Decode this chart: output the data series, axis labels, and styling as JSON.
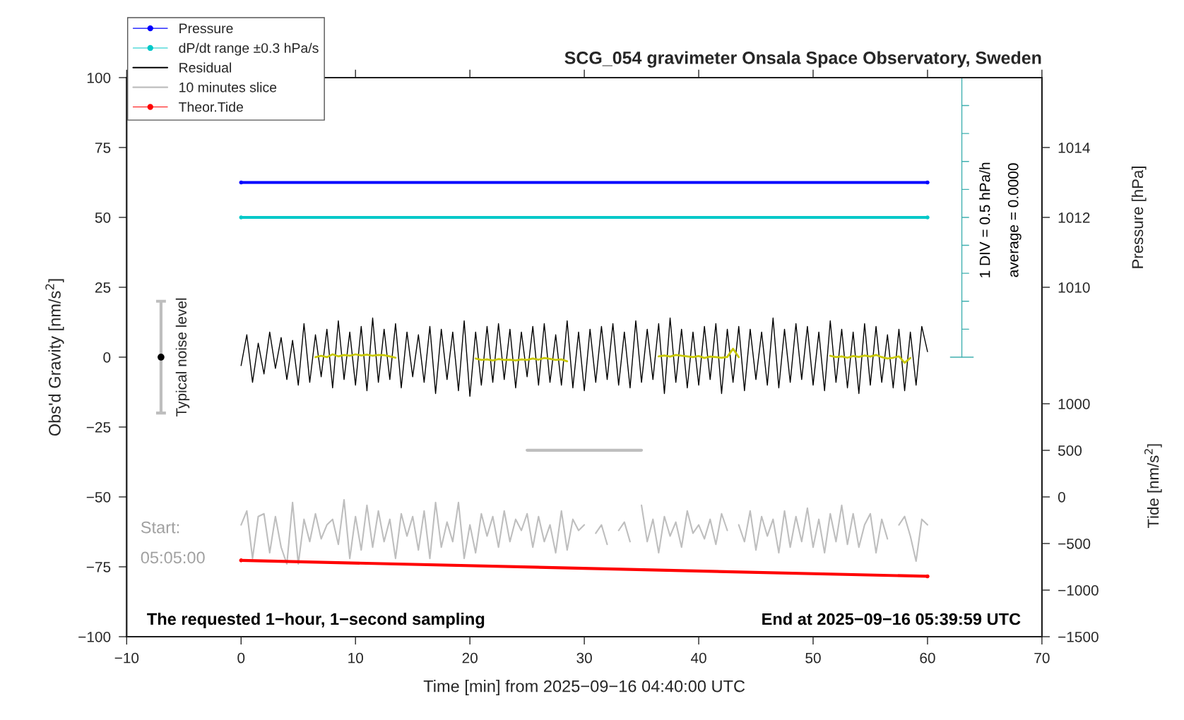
{
  "chart_data": {
    "type": "line",
    "title": "SCG_054 gravimeter Onsala Space Observatory, Sweden",
    "xlabel": "Time [min] from 2025−09−16 04:40:00 UTC",
    "ylabel": "Obs'd Gravity [nm/s$^{2}$]",
    "y2label": "Pressure [hPa]",
    "y3label": "Tide [nm/s$^{2}$]",
    "xlim": [
      -10,
      70
    ],
    "xticks": [
      {
        "value": -10,
        "label": "−10"
      },
      0,
      10,
      20,
      30,
      40,
      50,
      60,
      70
    ],
    "ylim": [
      -100,
      100
    ],
    "yticks": [
      {
        "value": -100,
        "label": "−100"
      },
      {
        "value": -75,
        "label": "−75"
      },
      {
        "value": -50,
        "label": "−50"
      },
      {
        "value": -25,
        "label": "−25"
      },
      0,
      25,
      50,
      75,
      100
    ],
    "y2lim": [
      1000,
      1016
    ],
    "y2ticks": [
      1010,
      1012,
      1014
    ],
    "y3lim": [
      -1500,
      4500
    ],
    "y3ticks": [
      {
        "value": -1500,
        "label": "−1500"
      },
      {
        "value": -1000,
        "label": "−1000"
      },
      {
        "value": -500,
        "label": "−500"
      },
      0,
      500,
      1000
    ],
    "grid": false,
    "legend": "top left",
    "annotations": [
      "Start:",
      "05:05:00",
      "The requested 1−hour, 1−second sampling",
      "End at 2025−09−16 05:39:59 UTC",
      "1 DIV = 0.5 hPa/h",
      "average = 0.0000"
    ],
    "series": [
      {
        "name": "Pressure",
        "axis": "y2",
        "color": "#0000ff",
        "marker": "circle",
        "x": [
          0,
          60
        ],
        "values": [
          1013,
          1013
        ]
      },
      {
        "name": "dP/dt range ±0.3 hPa/s",
        "color": "#00c8c8",
        "marker": "circle",
        "x": [
          0,
          60
        ],
        "values": [
          50,
          50
        ]
      },
      {
        "name": "Residual",
        "color": "#000000",
        "x": [
          0,
          0.5,
          1,
          1.5,
          2,
          2.5,
          3,
          3.5,
          4,
          4.5,
          5,
          5.5,
          6,
          6.5,
          7,
          7.5,
          8,
          8.5,
          9,
          9.5,
          10,
          10.5,
          11,
          11.5,
          12,
          12.5,
          13,
          13.5,
          14,
          14.5,
          15,
          15.5,
          16,
          16.5,
          17,
          17.5,
          18,
          18.5,
          19,
          19.5,
          20,
          20.5,
          21,
          21.5,
          22,
          22.5,
          23,
          23.5,
          24,
          24.5,
          25,
          25.5,
          26,
          26.5,
          27,
          27.5,
          28,
          28.5,
          29,
          29.5,
          30,
          30.5,
          31,
          31.5,
          32,
          32.5,
          33,
          33.5,
          34,
          34.5,
          35,
          35.5,
          36,
          36.5,
          37,
          37.5,
          38,
          38.5,
          39,
          39.5,
          40,
          40.5,
          41,
          41.5,
          42,
          42.5,
          43,
          43.5,
          44,
          44.5,
          45,
          45.5,
          46,
          46.5,
          47,
          47.5,
          48,
          48.5,
          49,
          49.5,
          50,
          50.5,
          51,
          51.5,
          52,
          52.5,
          53,
          53.5,
          54,
          54.5,
          55,
          55.5,
          56,
          56.5,
          57,
          57.5,
          58,
          58.5,
          59,
          59.5,
          60
        ],
        "values": [
          -3,
          8,
          -9,
          5,
          -6,
          9,
          -4,
          7,
          -8,
          6,
          -10,
          12,
          -9,
          8,
          -7,
          10,
          -11,
          13,
          -8,
          9,
          -10,
          11,
          -12,
          14,
          -9,
          10,
          -8,
          12,
          -11,
          9,
          -7,
          8,
          -9,
          11,
          -13,
          10,
          -8,
          9,
          -12,
          13,
          -14,
          9,
          -10,
          11,
          -9,
          12,
          -8,
          10,
          -11,
          9,
          -7,
          11,
          -10,
          12,
          -9,
          8,
          -10,
          13,
          -11,
          9,
          -12,
          10,
          -9,
          11,
          -8,
          12,
          -10,
          9,
          -11,
          13,
          -9,
          10,
          -8,
          12,
          -13,
          14,
          -9,
          10,
          -11,
          9,
          -10,
          11,
          -8,
          12,
          -13,
          10,
          -9,
          11,
          -12,
          10,
          -8,
          9,
          -10,
          14,
          -11,
          10,
          -9,
          12,
          -8,
          11,
          -10,
          9,
          -12,
          13,
          -9,
          10,
          -11,
          9,
          -13,
          12,
          -10,
          11,
          -9,
          8,
          -11,
          10,
          -12,
          9,
          -10,
          11,
          2
        ]
      },
      {
        "color": "#c8c800",
        "x": [
          6.5,
          7,
          7.5,
          8,
          8.5,
          9,
          9.5,
          10,
          10.5,
          11,
          11.5,
          12,
          12.5,
          13,
          13.5,
          14,
          20.5,
          21,
          21.5,
          22,
          22.5,
          23,
          23.5,
          24,
          24.5,
          25,
          25.5,
          26,
          26.5,
          27,
          27.5,
          28,
          28.5,
          29,
          36.5,
          37,
          37.5,
          38,
          38.5,
          39,
          39.5,
          40,
          40.5,
          41,
          41.5,
          42,
          42.5,
          43,
          43.5,
          44,
          51.5,
          52,
          52.5,
          53,
          53.5,
          54,
          54.5,
          55,
          55.5,
          56,
          56.5,
          57,
          57.5,
          58,
          58.5
        ],
        "values": [
          0,
          0.5,
          0,
          1,
          0.3,
          0.8,
          0.5,
          1,
          0.6,
          0.9,
          0.5,
          0.8,
          0.7,
          0.3,
          -0.2,
          null,
          -0.5,
          -1,
          -0.8,
          -1.2,
          -0.7,
          -1,
          -0.9,
          -1.2,
          -0.8,
          -1,
          -0.5,
          -0.9,
          -0.3,
          -0.6,
          -1,
          -0.8,
          -1.5,
          null,
          0.3,
          0.6,
          0.2,
          0.8,
          0.5,
          0.3,
          0,
          0.4,
          -0.3,
          0.2,
          0,
          -0.2,
          0.1,
          3,
          0,
          null,
          0.5,
          0,
          0.3,
          -0.2,
          0.4,
          0.1,
          0.6,
          0.2,
          0.8,
          0,
          -0.5,
          -0.2,
          0.3,
          -2,
          -0.3
        ]
      },
      {
        "name": "10 minutes slice",
        "color": "#bebebe",
        "x": [
          0,
          0.5,
          1,
          1.5,
          2,
          2.5,
          3,
          3.5,
          4,
          4.5,
          5,
          5.5,
          6,
          6.5,
          7,
          7.5,
          8,
          8.5,
          9,
          9.5,
          10,
          10.5,
          11,
          11.5,
          12,
          12.5,
          13,
          13.5,
          14,
          14.5,
          15,
          15.5,
          16,
          16.5,
          17,
          17.5,
          18,
          18.5,
          19,
          19.5,
          20,
          20.5,
          21,
          21.5,
          22,
          22.5,
          23,
          23.5,
          24,
          24.5,
          25,
          25.5,
          26,
          26.5,
          27,
          27.5,
          28,
          28.5,
          29,
          29.5,
          30,
          30.5,
          31,
          31.5,
          32,
          32.5,
          33,
          33.5,
          34,
          34.5,
          35,
          35.5,
          36,
          36.5,
          37,
          37.5,
          38,
          38.5,
          39,
          39.5,
          40,
          40.5,
          41,
          41.5,
          42,
          42.5,
          43,
          43.5,
          44,
          44.5,
          45,
          45.5,
          46,
          46.5,
          47,
          47.5,
          48,
          48.5,
          49,
          49.5,
          50,
          50.5,
          51,
          51.5,
          52,
          52.5,
          53,
          53.5,
          54,
          54.5,
          55,
          55.5,
          56,
          56.5,
          57,
          57.5,
          58,
          58.5,
          59,
          59.5,
          60
        ],
        "values": [
          -60,
          -55,
          -72,
          -57,
          -56,
          -70,
          -57,
          -68,
          -74,
          -52,
          -74,
          -58,
          -66,
          -56,
          -65,
          -60,
          -58,
          -67,
          -51,
          -72,
          -57,
          -69,
          -53,
          -68,
          -55,
          -66,
          -58,
          -72,
          -56,
          -64,
          -57,
          -69,
          -55,
          -72,
          -52,
          -68,
          -59,
          -66,
          -52,
          -72,
          -60,
          -70,
          -56,
          -64,
          -57,
          -68,
          -55,
          -66,
          -58,
          -62,
          -56,
          -68,
          -57,
          -66,
          -60,
          -70,
          -55,
          -69,
          -58,
          -62,
          -60,
          null,
          -63,
          -60,
          -67,
          null,
          -62,
          -59,
          -66,
          null,
          -53,
          -66,
          -58,
          -70,
          -57,
          -64,
          -59,
          -68,
          -55,
          -63,
          -60,
          -65,
          -58,
          -67,
          -56,
          -62,
          null,
          -60,
          -66,
          -55,
          -69,
          -57,
          -64,
          -58,
          -70,
          -55,
          -68,
          -57,
          -66,
          -54,
          -68,
          -58,
          -70,
          -56,
          -66,
          -53,
          -67,
          -56,
          -68,
          -60,
          -56,
          -70,
          -58,
          -65,
          null,
          -60,
          -57,
          -64,
          -73,
          -58,
          -60
        ]
      },
      {
        "name": "Theor.Tide",
        "axis": "y3",
        "color": "#ff0000",
        "marker": "circle",
        "x": [
          0,
          60
        ],
        "values": [
          -681,
          -852
        ]
      },
      {
        "name": "Typical noise level",
        "type": "scatter",
        "color": "#000000",
        "x": [
          -7
        ],
        "values": [
          0
        ],
        "errors": [
          20
        ]
      },
      {
        "color": "#bebebe",
        "x": [
          25,
          35
        ],
        "values": [
          -33.3,
          -33.3
        ]
      }
    ]
  }
}
